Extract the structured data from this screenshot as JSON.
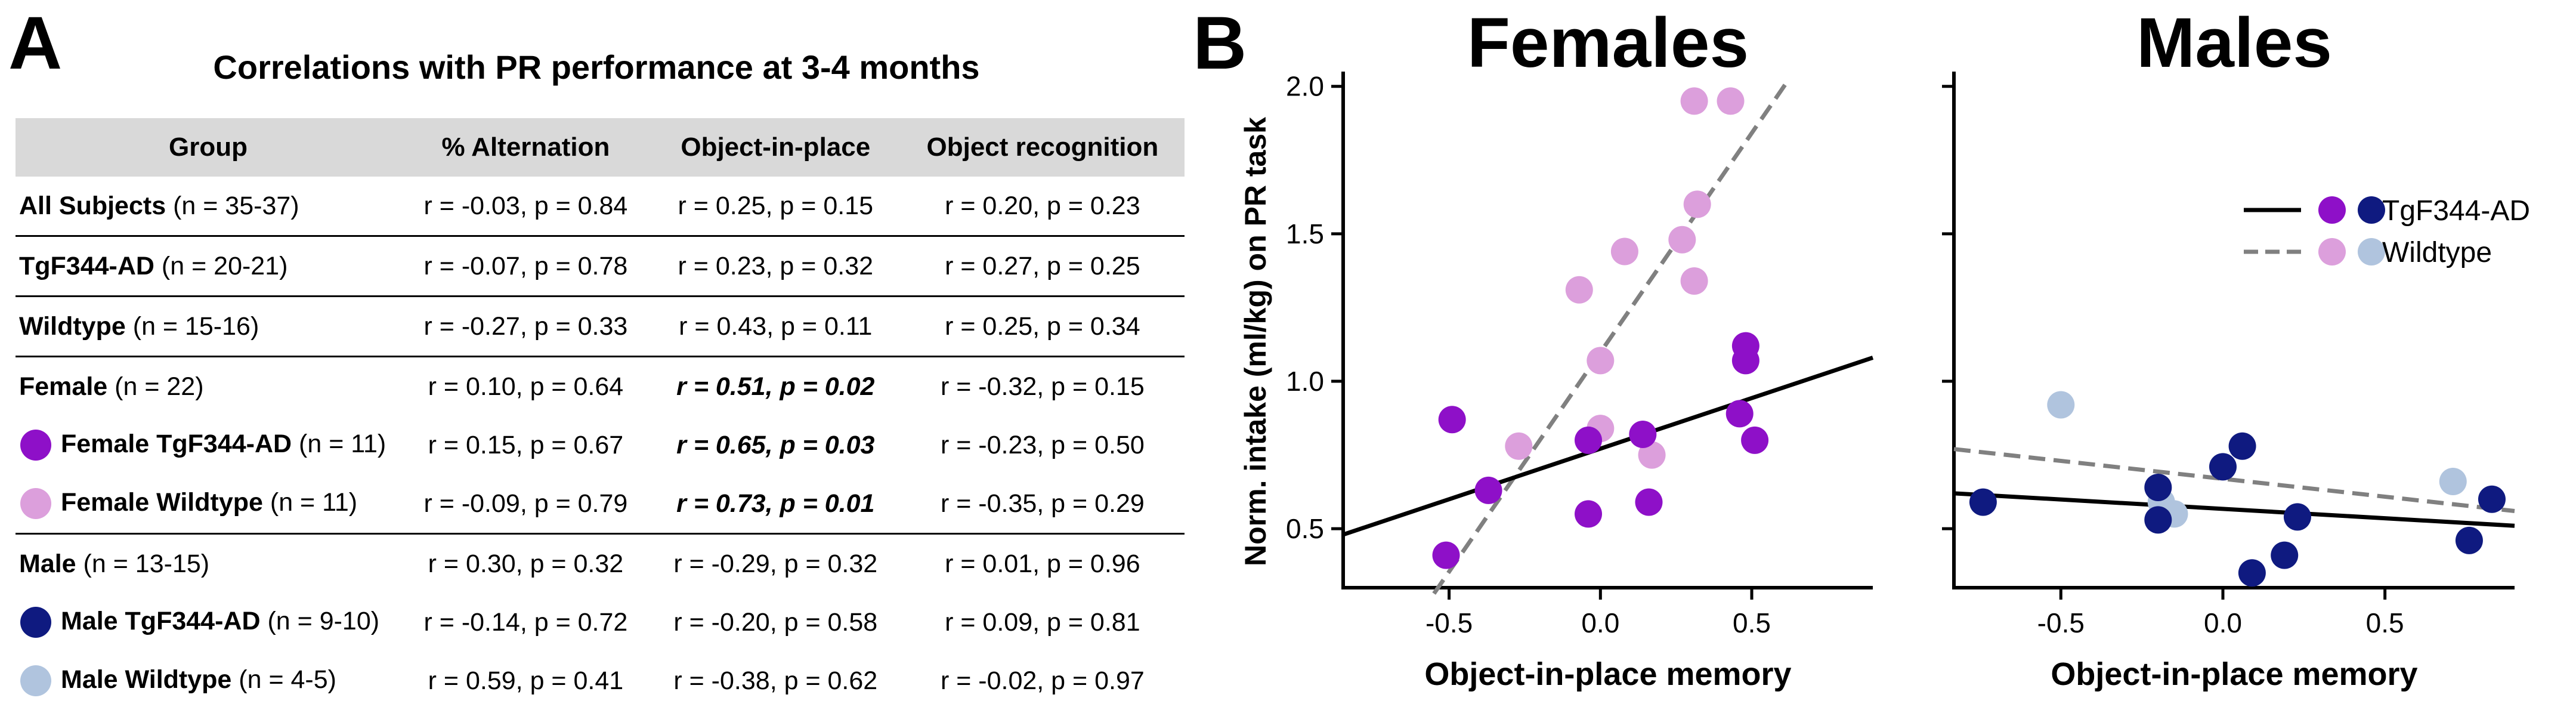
{
  "panel_a": {
    "letter": "A",
    "title": "Correlations with PR performance at 3-4 months",
    "headers": [
      "Group",
      "% Alternation",
      "Object-in-place",
      "Object recognition"
    ],
    "rows": [
      {
        "group": "All Subjects",
        "n": " (n = 35-37)",
        "dot": "",
        "sep": false,
        "sig": [
          false,
          false,
          false
        ],
        "values": [
          "r = -0.03, p = 0.84",
          "r = 0.25, p = 0.15",
          "r = 0.20, p = 0.23"
        ]
      },
      {
        "group": "TgF344-AD",
        "n": " (n = 20-21)",
        "dot": "",
        "sep": true,
        "sig": [
          false,
          false,
          false
        ],
        "values": [
          "r = -0.07, p = 0.78",
          "r = 0.23, p = 0.32",
          "r = 0.27, p = 0.25"
        ]
      },
      {
        "group": "Wildtype",
        "n": " (n = 15-16)",
        "dot": "",
        "sep": true,
        "sig": [
          false,
          false,
          false
        ],
        "values": [
          "r = -0.27, p = 0.33",
          "r = 0.43, p = 0.11",
          "r = 0.25, p = 0.34"
        ]
      },
      {
        "group": "Female",
        "n": " (n = 22)",
        "dot": "",
        "sep": true,
        "sig": [
          false,
          true,
          false
        ],
        "values": [
          "r = 0.10, p = 0.64",
          "r = 0.51, p = 0.02",
          "r = -0.32, p = 0.15"
        ]
      },
      {
        "group": "Female TgF344-AD",
        "n": " (n = 11)",
        "dot": "#8e10c8",
        "sep": false,
        "sig": [
          false,
          true,
          false
        ],
        "values": [
          "r = 0.15, p = 0.67",
          "r = 0.65, p = 0.03",
          "r = -0.23, p = 0.50"
        ]
      },
      {
        "group": "Female Wildtype",
        "n": " (n = 11)",
        "dot": "#dc9fdc",
        "sep": false,
        "sig": [
          false,
          true,
          false
        ],
        "values": [
          "r = -0.09, p = 0.79",
          "r = 0.73, p = 0.01",
          "r = -0.35, p = 0.29"
        ]
      },
      {
        "group": "Male",
        "n": " (n = 13-15)",
        "dot": "",
        "sep": true,
        "sig": [
          false,
          false,
          false
        ],
        "values": [
          "r = 0.30, p = 0.32",
          "r = -0.29, p = 0.32",
          "r = 0.01, p = 0.96"
        ]
      },
      {
        "group": "Male TgF344-AD",
        "n": " (n = 9-10)",
        "dot": "#0f1a80",
        "sep": false,
        "sig": [
          false,
          false,
          false
        ],
        "values": [
          "r = -0.14, p = 0.72",
          "r = -0.20, p = 0.58",
          "r = 0.09, p = 0.81"
        ]
      },
      {
        "group": "Male Wildtype",
        "n": " (n = 4-5)",
        "dot": "#b0c4de",
        "sep": false,
        "sig": [
          false,
          false,
          false
        ],
        "values": [
          "r = 0.59, p = 0.41",
          "r = -0.38, p = 0.62",
          "r = -0.02, p = 0.97"
        ]
      }
    ]
  },
  "panel_b": {
    "letter": "B"
  },
  "colors": {
    "female_tg": "#8e10c8",
    "female_wt": "#dc9fdc",
    "male_tg": "#0f1a80",
    "male_wt": "#b0c4de",
    "tg_line": "#000000",
    "wt_line": "#808080"
  },
  "chart_data": [
    {
      "type": "scatter",
      "title": "Females",
      "xlabel": "Object-in-place memory",
      "ylabel": "Norm. intake (ml/kg) on PR task",
      "xlim": [
        -0.85,
        0.9
      ],
      "ylim": [
        0.3,
        2.05
      ],
      "xticks": [
        -0.5,
        0.0,
        0.5
      ],
      "xtick_labels": [
        "-0.5",
        "0.0",
        "0.5"
      ],
      "yticks": [
        0.5,
        1.0,
        1.5,
        2.0
      ],
      "ytick_labels": [
        "0.5",
        "1.0",
        "1.5",
        "2.0"
      ],
      "series": [
        {
          "name": "Wildtype",
          "group": "wt",
          "points": [
            [
              -0.27,
              0.78
            ],
            [
              -0.07,
              1.31
            ],
            [
              0.0,
              0.84
            ],
            [
              0.0,
              1.07
            ],
            [
              0.08,
              1.44
            ],
            [
              0.17,
              0.75
            ],
            [
              0.27,
              1.48
            ],
            [
              0.31,
              1.34
            ],
            [
              0.32,
              1.6
            ],
            [
              0.31,
              1.95
            ],
            [
              0.43,
              1.95
            ]
          ]
        },
        {
          "name": "TgF344-AD",
          "group": "tg",
          "points": [
            [
              -0.51,
              0.41
            ],
            [
              -0.49,
              0.87
            ],
            [
              -0.37,
              0.63
            ],
            [
              -0.04,
              0.55
            ],
            [
              -0.04,
              0.8
            ],
            [
              0.14,
              0.82
            ],
            [
              0.16,
              0.59
            ],
            [
              0.46,
              0.89
            ],
            [
              0.48,
              1.07
            ],
            [
              0.48,
              1.12
            ],
            [
              0.51,
              0.8
            ]
          ]
        }
      ],
      "fits": [
        {
          "group": "wt",
          "style": "dashed",
          "x": [
            -0.55,
            0.62
          ],
          "y": [
            0.28,
            2.02
          ]
        },
        {
          "group": "tg",
          "style": "solid",
          "x": [
            -0.85,
            0.9
          ],
          "y": [
            0.48,
            1.08
          ]
        }
      ]
    },
    {
      "type": "scatter",
      "title": "Males",
      "xlabel": "Object-in-place memory",
      "ylim_shared": true,
      "xlim": [
        -0.83,
        0.9
      ],
      "ylim": [
        0.3,
        2.05
      ],
      "xticks": [
        -0.5,
        0.0,
        0.5
      ],
      "xtick_labels": [
        "-0.5",
        "0.0",
        "0.5"
      ],
      "yticks": [
        0.5,
        1.0,
        1.5,
        2.0
      ],
      "series": [
        {
          "name": "Wildtype",
          "group": "wt",
          "points": [
            [
              -0.5,
              0.92
            ],
            [
              -0.19,
              0.59
            ],
            [
              -0.15,
              0.55
            ],
            [
              0.71,
              0.66
            ]
          ]
        },
        {
          "name": "TgF344-AD",
          "group": "tg",
          "points": [
            [
              -0.74,
              0.59
            ],
            [
              -0.2,
              0.64
            ],
            [
              -0.2,
              0.53
            ],
            [
              0.0,
              0.71
            ],
            [
              0.06,
              0.78
            ],
            [
              0.09,
              0.35
            ],
            [
              0.19,
              0.41
            ],
            [
              0.23,
              0.54
            ],
            [
              0.76,
              0.46
            ],
            [
              0.83,
              0.6
            ]
          ]
        }
      ],
      "fits": [
        {
          "group": "wt",
          "style": "dashed",
          "x": [
            -0.83,
            0.9
          ],
          "y": [
            0.77,
            0.56
          ]
        },
        {
          "group": "tg",
          "style": "solid",
          "x": [
            -0.83,
            0.9
          ],
          "y": [
            0.62,
            0.51
          ]
        }
      ],
      "legend": {
        "position": "upper-right",
        "entries": [
          {
            "label": "TgF344-AD",
            "line": "solid",
            "dots": [
              "female_tg",
              "male_tg"
            ]
          },
          {
            "label": "Wildtype",
            "line": "dashed",
            "dots": [
              "female_wt",
              "male_wt"
            ]
          }
        ]
      }
    }
  ]
}
